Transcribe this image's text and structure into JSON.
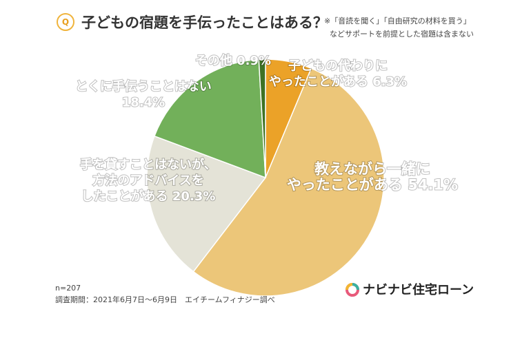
{
  "header": {
    "badge": "Q",
    "title": "子どもの宿題を手伝ったことはある？",
    "note_line1": "※「音読を聞く」「自由研究の材料を買う」",
    "note_line2": "などサポートを前提とした宿題は含まない"
  },
  "footer": {
    "n": "n=207",
    "period": "調査期間：2021年6月7日〜6月9日　エイチームフィナジー調べ"
  },
  "brand": {
    "name": "ナビナビ住宅ローン"
  },
  "colors": {
    "did_instead": "#eba228",
    "taught_together": "#ecc679",
    "advice_only": "#e4e3d7",
    "no_help": "#72b05a",
    "other": "#3e7224",
    "edge": "#ffffff"
  },
  "chart_data": {
    "type": "pie",
    "title": "子どもの宿題を手伝ったことはある？",
    "slices": [
      {
        "key": "did_instead",
        "label": [
          "子どもの代わりに",
          "やったことがある 6.3%"
        ],
        "value": 6.3
      },
      {
        "key": "taught_together",
        "label": [
          "教えながら一緒に",
          "やったことがある 54.1%"
        ],
        "value": 54.1
      },
      {
        "key": "advice_only",
        "label": [
          "手を貸すことはないが、",
          "方法のアドバイスを",
          "したことがある 20.3%"
        ],
        "value": 20.3
      },
      {
        "key": "no_help",
        "label": [
          "とくに手伝うことはない",
          "18.4%"
        ],
        "value": 18.4
      },
      {
        "key": "other",
        "label": [
          "その他 0.9%"
        ],
        "value": 0.9
      }
    ]
  }
}
